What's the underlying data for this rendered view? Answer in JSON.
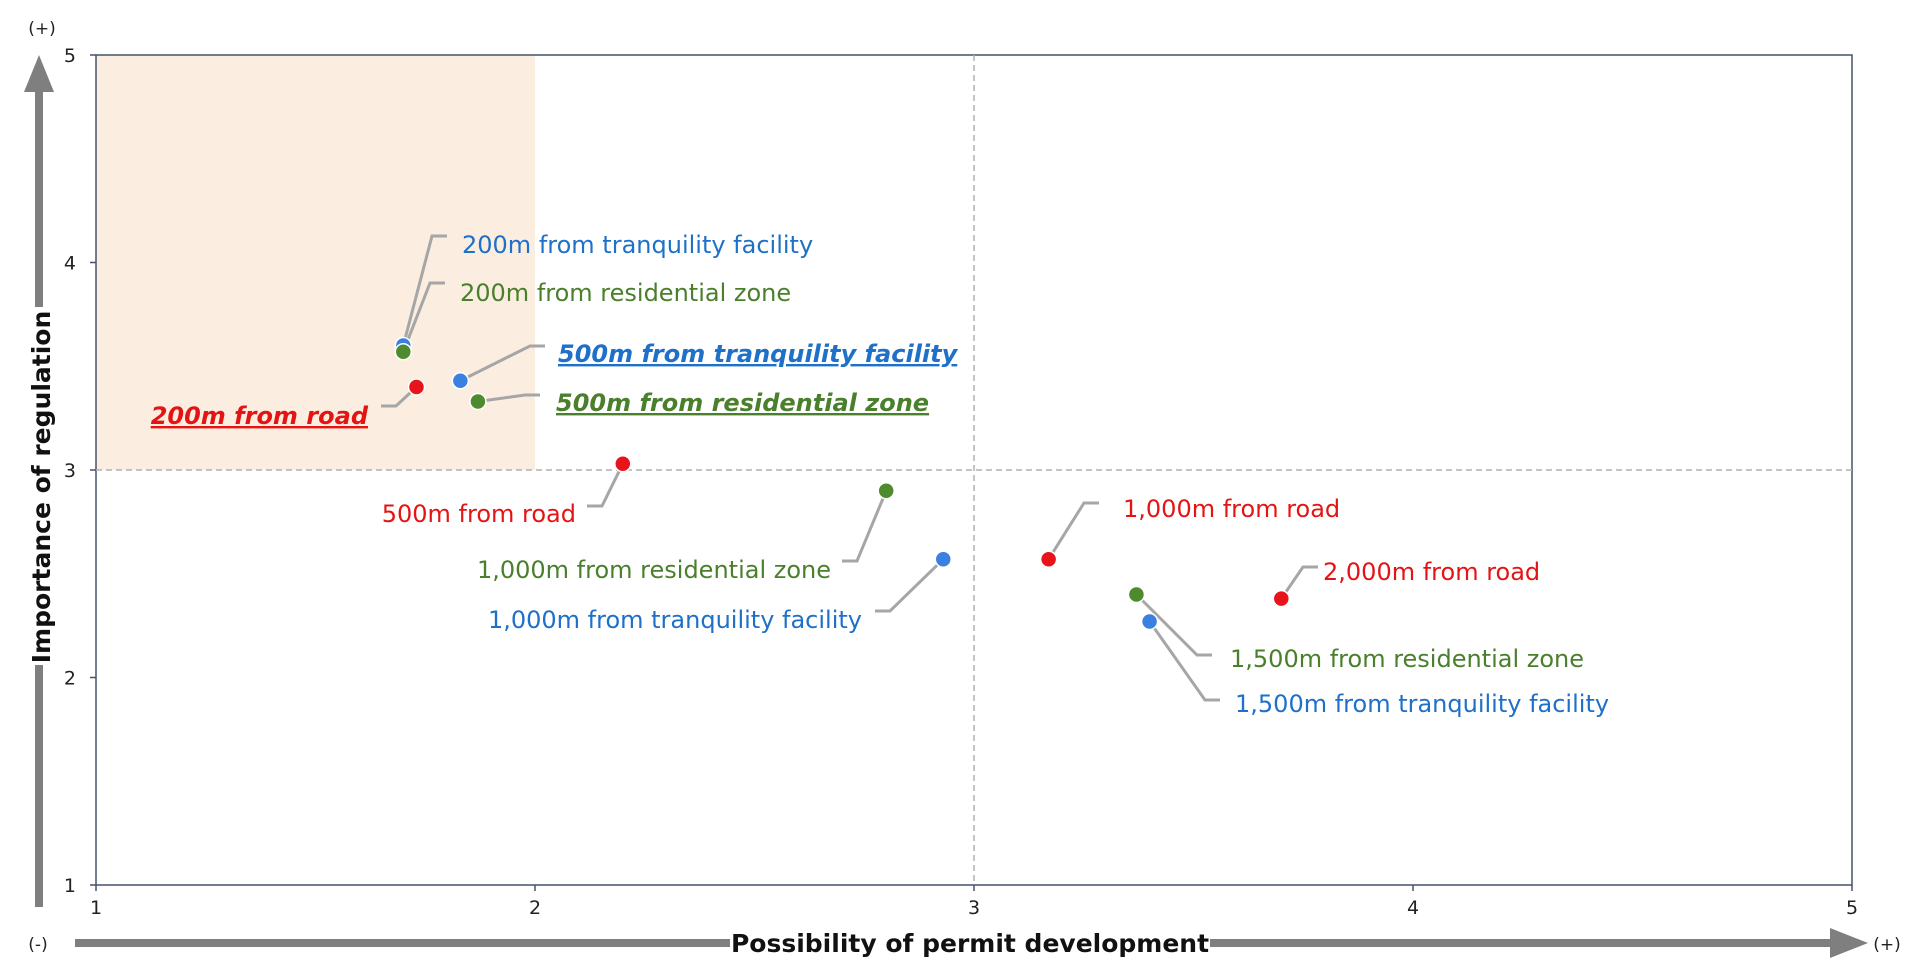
{
  "chart_data": {
    "type": "scatter",
    "xlabel": "Possibility of permit development",
    "ylabel": "Importance of regulation",
    "xlim": [
      1,
      5
    ],
    "ylim": [
      1,
      5
    ],
    "x_ticks": [
      "1",
      "2",
      "3",
      "4",
      "5"
    ],
    "y_ticks": [
      "1",
      "2",
      "3",
      "4",
      "5"
    ],
    "x_min_sign": "(-)",
    "x_max_sign": "(+)",
    "y_max_sign": "(+)",
    "reference_lines": {
      "x": 3,
      "y": 3
    },
    "highlight_region": {
      "x": [
        1,
        2
      ],
      "y": [
        3,
        5
      ],
      "color": "#fbeee0"
    },
    "colors": {
      "road": "#e8141c",
      "residential": "#4e8a2e",
      "tranquility": "#3a80e0",
      "label_road": "#e51414",
      "label_residential": "#4a7f2c",
      "label_tranquility": "#1e70c8"
    },
    "points": [
      {
        "label": "200m from tranquility facility",
        "x": 1.7,
        "y": 3.6,
        "group": "tranquility",
        "emphasis": false
      },
      {
        "label": "200m from residential zone",
        "x": 1.7,
        "y": 3.57,
        "group": "residential",
        "emphasis": false
      },
      {
        "label": "500m from tranquility facility",
        "x": 1.83,
        "y": 3.43,
        "group": "tranquility",
        "emphasis": true
      },
      {
        "label": "500m from residential zone",
        "x": 1.87,
        "y": 3.33,
        "group": "residential",
        "emphasis": true
      },
      {
        "label": "200m from road",
        "x": 1.73,
        "y": 3.4,
        "group": "road",
        "emphasis": true
      },
      {
        "label": "500m from road",
        "x": 2.2,
        "y": 3.03,
        "group": "road",
        "emphasis": false
      },
      {
        "label": "1,000m from residential zone",
        "x": 2.8,
        "y": 2.9,
        "group": "residential",
        "emphasis": false
      },
      {
        "label": "1,000m from tranquility facility",
        "x": 2.93,
        "y": 2.57,
        "group": "tranquility",
        "emphasis": false
      },
      {
        "label": "1,000m from road",
        "x": 3.17,
        "y": 2.57,
        "group": "road",
        "emphasis": false
      },
      {
        "label": "2,000m from road",
        "x": 3.7,
        "y": 2.38,
        "group": "road",
        "emphasis": false
      },
      {
        "label": "1,500m from residential zone",
        "x": 3.37,
        "y": 2.4,
        "group": "residential",
        "emphasis": false
      },
      {
        "label": "1,500m from tranquility facility",
        "x": 3.4,
        "y": 2.27,
        "group": "tranquility",
        "emphasis": false
      }
    ]
  }
}
